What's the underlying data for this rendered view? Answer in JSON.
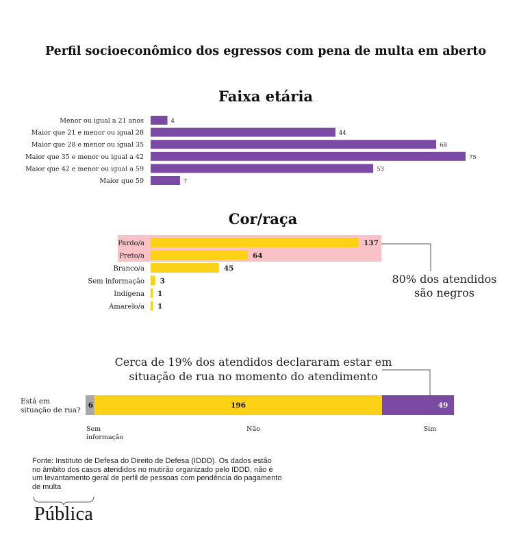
{
  "title": "Perfil socioeconômico dos egressos com pena de multa em aberto",
  "colors": {
    "purple": "#7b4aa5",
    "yellow": "#fcd116",
    "gray": "#a7a7a7",
    "highlight": "#f9c2c6",
    "callout": "#555555"
  },
  "chart_data": [
    {
      "type": "bar",
      "orientation": "horizontal",
      "title": "Faixa etária",
      "categories": [
        "Menor ou igual a 21 anos",
        "Maior que 21 e menor ou igual 28",
        "Maior que 28 e menor ou igual 35",
        "Maior que 35 e menor ou igual a 42",
        "Maior que 42 e menor ou igual a 59",
        "Maior que 59"
      ],
      "values": [
        4,
        44,
        68,
        75,
        53,
        7
      ],
      "color": "#7b4aa5"
    },
    {
      "type": "bar",
      "orientation": "horizontal",
      "title": "Cor/raça",
      "categories": [
        "Pardo/a",
        "Preto/a",
        "Branco/a",
        "Sem informação",
        "Indígena",
        "Amarelo/a"
      ],
      "values": [
        137,
        64,
        45,
        3,
        1,
        1
      ],
      "highlighted": [
        "Pardo/a",
        "Preto/a"
      ],
      "color": "#fcd116",
      "annotation": [
        "80% dos atendidos",
        "são negros"
      ]
    },
    {
      "type": "bar",
      "orientation": "stacked-horizontal",
      "row_label": [
        "Está em",
        "situação de rua?"
      ],
      "categories": [
        "Sem informação",
        "Não",
        "Sim"
      ],
      "category_labels": [
        [
          "Sem",
          "informação"
        ],
        [
          "Não"
        ],
        [
          "Sim"
        ]
      ],
      "values": [
        6,
        196,
        49
      ],
      "colors": [
        "#a7a7a7",
        "#fcd116",
        "#7b4aa5"
      ],
      "annotation": [
        "Cerca de 19% dos atendidos declararam estar em",
        "situação de rua no momento do atendimento"
      ]
    }
  ],
  "source_text": "Fonte: Instituto de Defesa do Direito de Defesa (IDDD). Os dados estão no âmbito dos casos atendidos no mutirão organizado pelo IDDD, não é um levantamento geral de perfil de pessoas com pendência do pagamento de multa",
  "logo_text": "Pública"
}
